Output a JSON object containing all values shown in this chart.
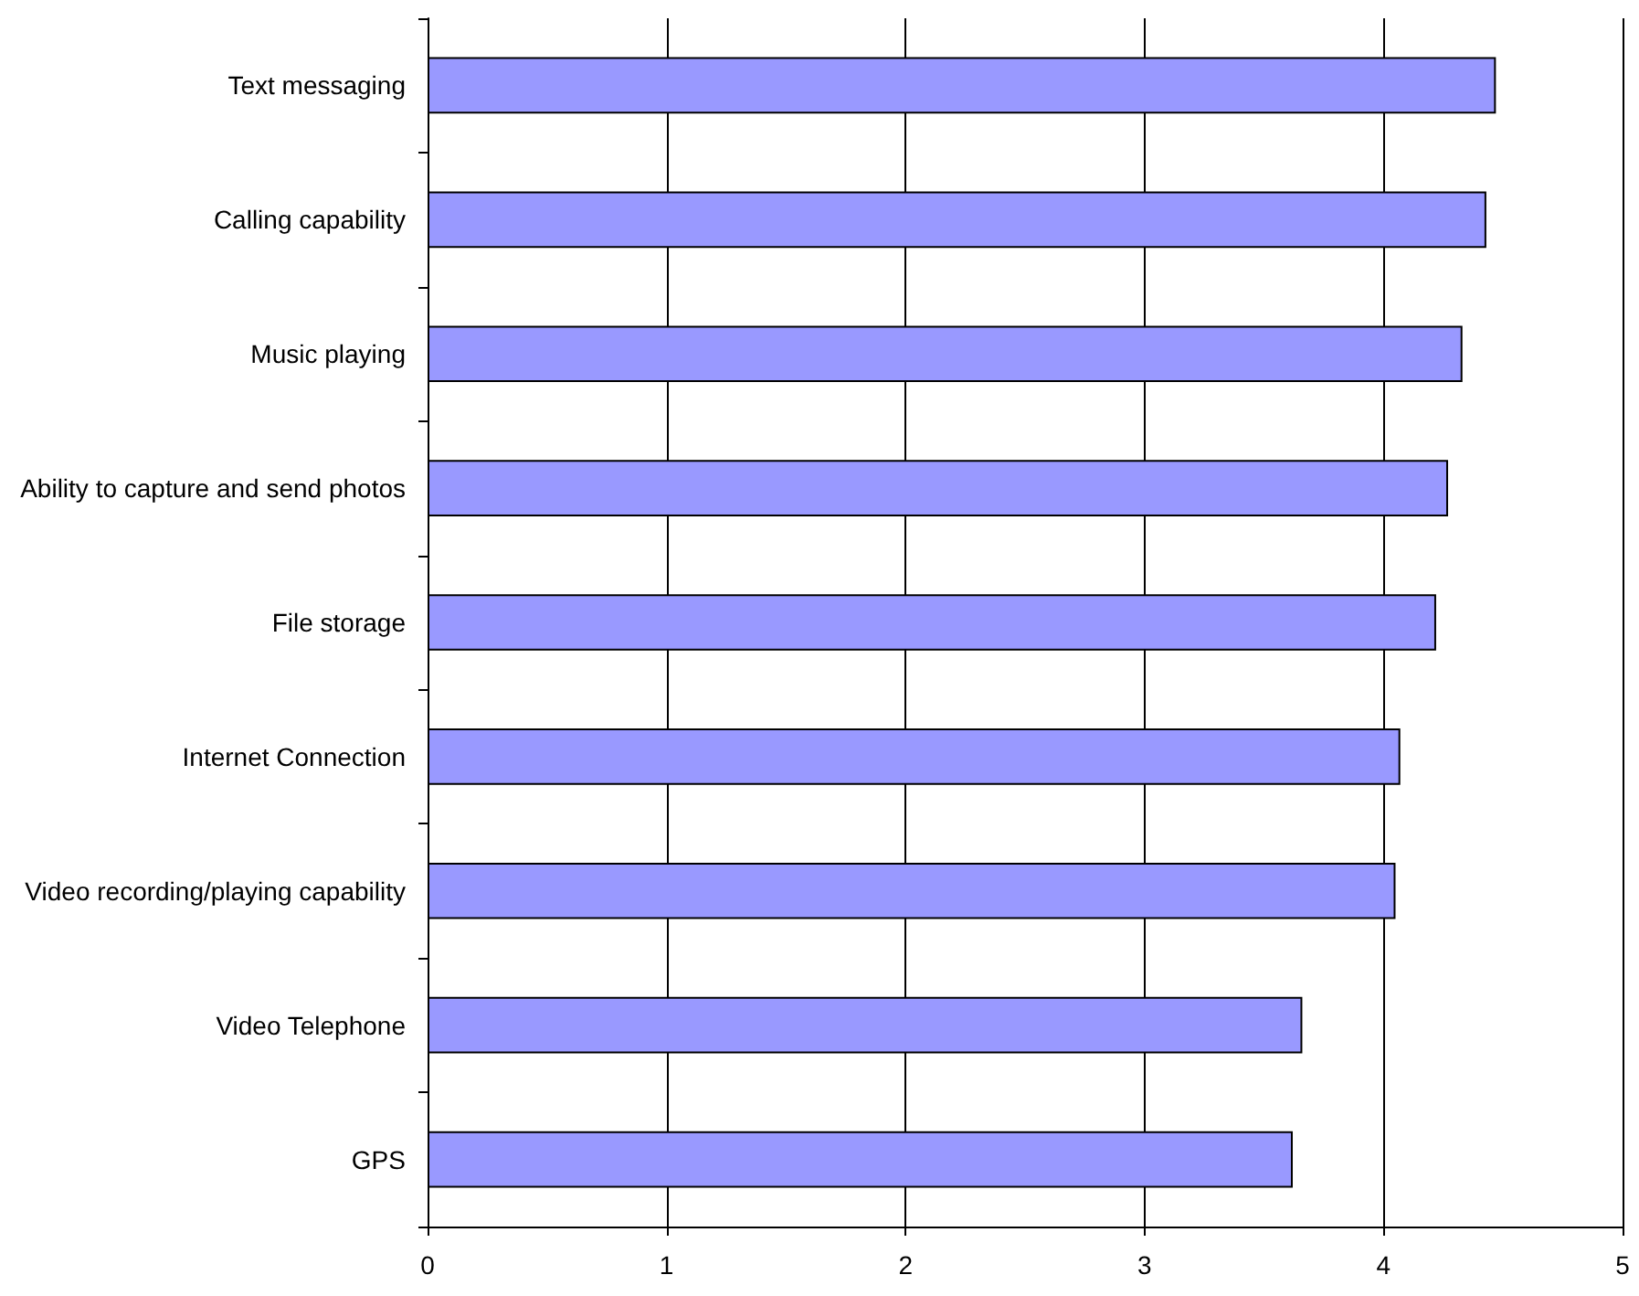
{
  "chart_data": {
    "type": "bar",
    "orientation": "horizontal",
    "categories": [
      "Text messaging",
      "Calling capability",
      "Music playing",
      "Ability to capture and send photos",
      "File storage",
      "Internet Connection",
      "Video recording/playing capability",
      "Video Telephone",
      "GPS"
    ],
    "values": [
      4.47,
      4.43,
      4.33,
      4.27,
      4.22,
      4.07,
      4.05,
      3.66,
      3.62
    ],
    "color": "#9999ff",
    "xlim": [
      0,
      5
    ],
    "xticks": [
      0,
      1,
      2,
      3,
      4,
      5
    ],
    "grid": "x"
  }
}
